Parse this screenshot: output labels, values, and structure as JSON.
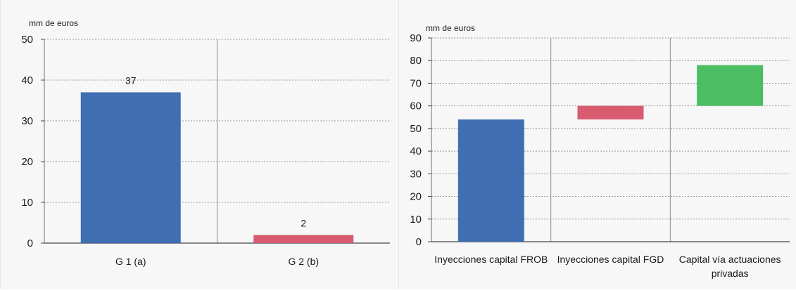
{
  "chart_data": [
    {
      "type": "bar",
      "unit_label": "mm de euros",
      "categories": [
        "G 1 (a)",
        "G 2 (b)"
      ],
      "values": [
        37,
        2
      ],
      "data_labels": [
        "37",
        "2"
      ],
      "colors": [
        "#3f6fb2",
        "#d95b70"
      ],
      "ylim": [
        0,
        50
      ],
      "yticks": [
        0,
        10,
        20,
        30,
        40,
        50
      ],
      "grid": true
    },
    {
      "type": "waterfall",
      "unit_label": "mm de euros",
      "categories": [
        "Inyecciones capital FROB",
        "Inyecciones capital FGD",
        "Capital vía actuaciones privadas"
      ],
      "bars": [
        {
          "start": 0,
          "end": 54,
          "color": "#3f6fb2"
        },
        {
          "start": 54,
          "end": 60,
          "color": "#d95b70"
        },
        {
          "start": 60,
          "end": 78,
          "color": "#4cbd63"
        }
      ],
      "ylim": [
        0,
        90
      ],
      "yticks": [
        0,
        10,
        20,
        30,
        40,
        50,
        60,
        70,
        80,
        90
      ],
      "grid": true
    }
  ]
}
